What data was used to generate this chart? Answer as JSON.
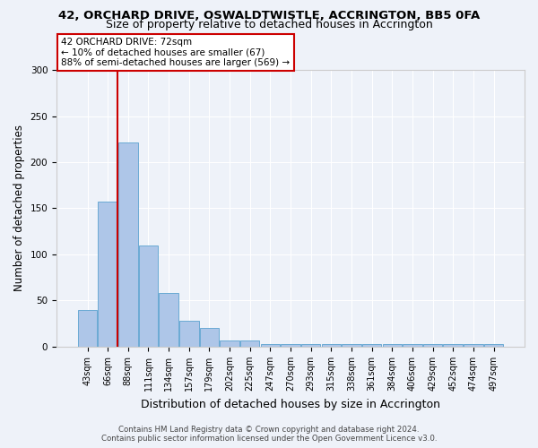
{
  "title": "42, ORCHARD DRIVE, OSWALDTWISTLE, ACCRINGTON, BB5 0FA",
  "subtitle": "Size of property relative to detached houses in Accrington",
  "xlabel": "Distribution of detached houses by size in Accrington",
  "ylabel": "Number of detached properties",
  "bar_labels": [
    "43sqm",
    "66sqm",
    "88sqm",
    "111sqm",
    "134sqm",
    "157sqm",
    "179sqm",
    "202sqm",
    "225sqm",
    "247sqm",
    "270sqm",
    "293sqm",
    "315sqm",
    "338sqm",
    "361sqm",
    "384sqm",
    "406sqm",
    "429sqm",
    "452sqm",
    "474sqm",
    "497sqm"
  ],
  "bar_values": [
    40,
    157,
    221,
    110,
    58,
    28,
    20,
    7,
    7,
    3,
    3,
    3,
    3,
    3,
    3,
    3,
    3,
    3,
    3,
    3,
    3
  ],
  "bar_color": "#aec6e8",
  "bar_edge_color": "#6aaad4",
  "vline_color": "#cc0000",
  "annotation_line1": "42 ORCHARD DRIVE: 72sqm",
  "annotation_line2": "← 10% of detached houses are smaller (67)",
  "annotation_line3": "88% of semi-detached houses are larger (569) →",
  "annotation_box_color": "#ffffff",
  "annotation_border_color": "#cc0000",
  "ylim": [
    0,
    300
  ],
  "yticks": [
    0,
    50,
    100,
    150,
    200,
    250,
    300
  ],
  "background_color": "#eef2f9",
  "footer_line1": "Contains HM Land Registry data © Crown copyright and database right 2024.",
  "footer_line2": "Contains public sector information licensed under the Open Government Licence v3.0.",
  "title_fontsize": 9.5,
  "subtitle_fontsize": 9,
  "tick_fontsize": 7,
  "xlabel_fontsize": 9,
  "ylabel_fontsize": 8.5
}
